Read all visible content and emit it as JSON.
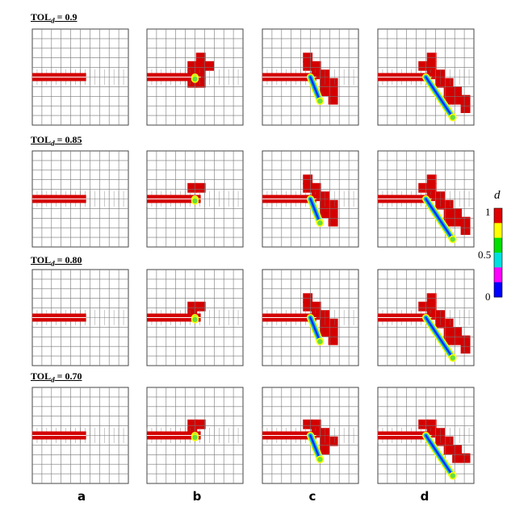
{
  "rows": [
    {
      "title_prefix": "TOL",
      "title_sub": "d",
      "title_value": " = 0.9"
    },
    {
      "title_prefix": "TOL",
      "title_sub": "d",
      "title_value": " = 0.85"
    },
    {
      "title_prefix": "TOL",
      "title_sub": "d",
      "title_value": " = 0.80"
    },
    {
      "title_prefix": "TOL",
      "title_sub": "d",
      "title_value": " = 0.70"
    }
  ],
  "columns": [
    "a",
    "b",
    "c",
    "d"
  ],
  "colorbar": {
    "title": "d",
    "tick_labels": [
      "1",
      "0.5",
      "0"
    ],
    "colors": [
      "#e00000",
      "#ffff00",
      "#00e000",
      "#00e0e0",
      "#ff00ff",
      "#0000ff"
    ]
  },
  "palette": {
    "damage_high": "#d40000",
    "crack_core": "#0a2cff",
    "crack_mid": "#19c8c8",
    "crack_tip": "#ffff00",
    "grid_line": "#777777"
  }
}
